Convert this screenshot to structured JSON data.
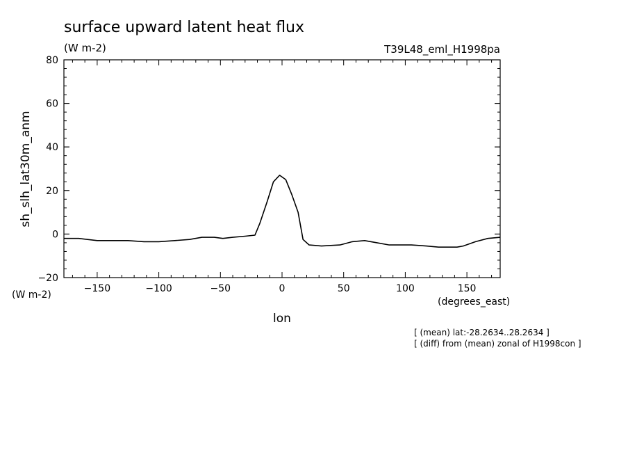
{
  "chart_data": {
    "type": "line",
    "title": "surface upward latent heat flux",
    "units": "(W m-2)",
    "run_label": "T39L48_eml_H1998pa",
    "xlabel": "lon",
    "x_units": "(degrees_east)",
    "ylabel": "sh_slh_lat30m_anm",
    "y_units": "(W m-2)",
    "xlim": [
      -177,
      177
    ],
    "ylim": [
      -20,
      80
    ],
    "x_ticks": [
      -150,
      -100,
      -50,
      0,
      50,
      100,
      150
    ],
    "y_ticks": [
      -20,
      0,
      20,
      40,
      60,
      80
    ],
    "notes": [
      "[ (mean) lat:-28.2634..28.2634 ]",
      "[ (diff) from (mean) zonal of H1998con ]"
    ],
    "grid": false,
    "series": [
      {
        "x": [
          -177,
          -165,
          -150,
          -135,
          -125,
          -112,
          -100,
          -87,
          -75,
          -65,
          -55,
          -48,
          -40,
          -30,
          -22,
          -18,
          -12,
          -7,
          -2,
          3,
          8,
          13,
          17,
          22,
          32,
          47,
          57,
          67,
          77,
          87,
          97,
          105,
          117,
          127,
          142,
          147,
          157,
          167,
          177
        ],
        "y": [
          -2,
          -2,
          -3,
          -3,
          -3,
          -3.5,
          -3.5,
          -3,
          -2.5,
          -1.5,
          -1.5,
          -2,
          -1.5,
          -1,
          -0.5,
          5,
          15,
          24,
          27,
          25,
          18,
          10,
          -2.5,
          -5,
          -5.5,
          -5,
          -3.5,
          -3,
          -4,
          -5,
          -5,
          -5,
          -5.5,
          -6,
          -6,
          -5.5,
          -3.5,
          -2,
          -1.5
        ]
      }
    ]
  }
}
